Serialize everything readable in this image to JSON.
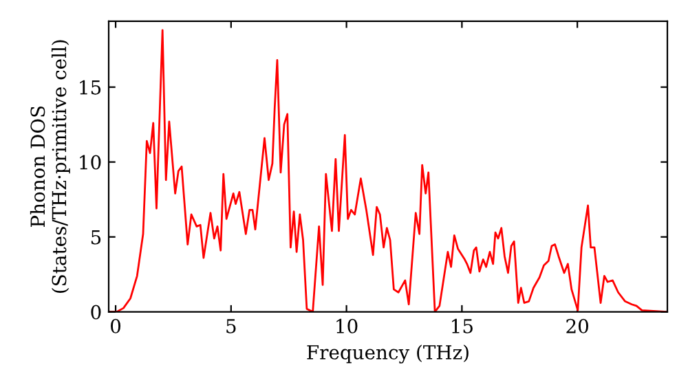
{
  "chart_data": {
    "type": "line",
    "xlabel": "Frequency (THz)",
    "ylabel": "Phonon DOS\n(States/THz·primitive cell)",
    "xlim": [
      -0.3,
      23.9
    ],
    "ylim": [
      0,
      19.4
    ],
    "xticks": [
      0,
      5,
      10,
      15,
      20
    ],
    "yticks": [
      0,
      5,
      10,
      15
    ],
    "grid": false,
    "legend": false,
    "marker": "none",
    "line_style": "solid",
    "series": [
      {
        "color": "#ff0000",
        "x": [
          -0.25,
          0.04,
          0.34,
          0.64,
          0.93,
          1.19,
          1.35,
          1.49,
          1.63,
          1.77,
          2.03,
          2.18,
          2.32,
          2.58,
          2.72,
          2.86,
          3.12,
          3.28,
          3.51,
          3.67,
          3.81,
          4.11,
          4.27,
          4.41,
          4.55,
          4.67,
          4.8,
          5.1,
          5.2,
          5.36,
          5.64,
          5.8,
          5.93,
          6.05,
          6.45,
          6.63,
          6.79,
          6.89,
          7.0,
          7.15,
          7.3,
          7.44,
          7.58,
          7.72,
          7.84,
          7.98,
          8.12,
          8.28,
          8.54,
          8.81,
          8.97,
          9.11,
          9.37,
          9.53,
          9.67,
          9.93,
          10.06,
          10.2,
          10.36,
          10.62,
          10.86,
          11.15,
          11.31,
          11.45,
          11.61,
          11.75,
          11.89,
          12.05,
          12.25,
          12.54,
          12.7,
          13.0,
          13.16,
          13.28,
          13.43,
          13.55,
          13.83,
          14.03,
          14.39,
          14.53,
          14.67,
          14.83,
          15.12,
          15.22,
          15.37,
          15.52,
          15.62,
          15.76,
          15.92,
          16.05,
          16.21,
          16.35,
          16.45,
          16.57,
          16.71,
          16.85,
          17.0,
          17.14,
          17.26,
          17.44,
          17.56,
          17.7,
          17.9,
          18.1,
          18.36,
          18.55,
          18.75,
          18.89,
          19.03,
          19.19,
          19.43,
          19.59,
          19.75,
          20.02,
          20.18,
          20.46,
          20.58,
          20.74,
          21.01,
          21.17,
          21.31,
          21.53,
          21.77,
          22.07,
          22.36,
          22.56,
          22.8,
          23.86
        ],
        "values": [
          0,
          0,
          0.25,
          0.9,
          2.4,
          5.2,
          11.4,
          10.6,
          12.6,
          6.9,
          18.8,
          8.8,
          12.7,
          7.9,
          9.4,
          9.7,
          4.5,
          6.5,
          5.7,
          5.8,
          3.6,
          6.6,
          4.9,
          5.7,
          4.1,
          9.2,
          6.2,
          7.9,
          7.2,
          8.0,
          5.2,
          6.8,
          6.8,
          5.5,
          11.6,
          8.8,
          9.9,
          13.6,
          16.8,
          9.3,
          12.5,
          13.2,
          4.3,
          6.7,
          4.0,
          6.5,
          4.8,
          0.2,
          0,
          5.7,
          1.8,
          9.2,
          5.4,
          10.2,
          5.4,
          11.8,
          6.2,
          6.8,
          6.5,
          8.9,
          6.8,
          3.8,
          7.0,
          6.5,
          4.3,
          5.6,
          4.8,
          1.5,
          1.3,
          2.1,
          0.5,
          6.6,
          5.2,
          9.8,
          7.9,
          9.3,
          0,
          0.4,
          4.0,
          3.0,
          5.1,
          4.2,
          3.5,
          3.2,
          2.6,
          4.1,
          4.3,
          2.7,
          3.5,
          3.0,
          4.0,
          3.2,
          5.3,
          4.9,
          5.6,
          3.7,
          2.6,
          4.4,
          4.7,
          0.6,
          1.6,
          0.6,
          0.7,
          1.6,
          2.3,
          3.1,
          3.4,
          4.4,
          4.5,
          3.7,
          2.6,
          3.2,
          1.5,
          0.1,
          4.3,
          7.1,
          4.3,
          4.3,
          0.6,
          2.4,
          2.0,
          2.1,
          1.3,
          0.7,
          0.5,
          0.4,
          0.1,
          0
        ]
      }
    ]
  }
}
